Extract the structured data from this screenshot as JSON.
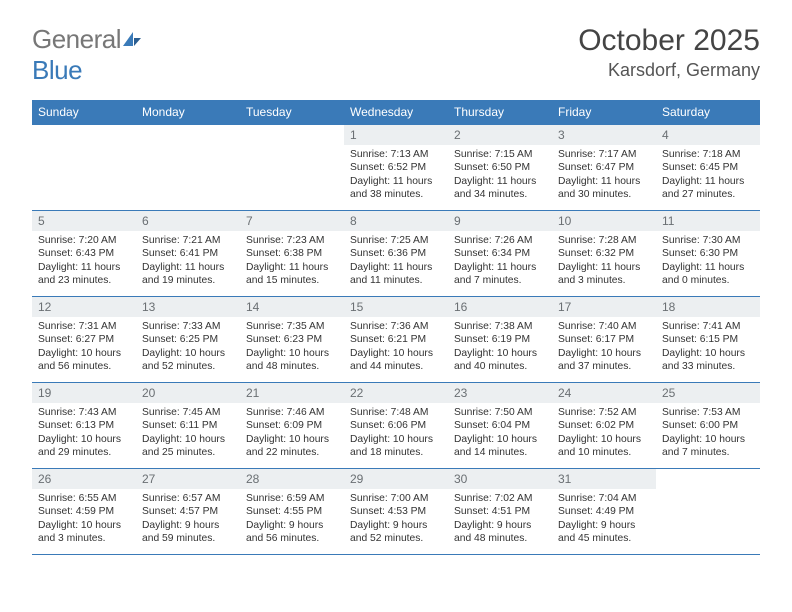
{
  "brand": {
    "part1": "General",
    "part2": "Blue"
  },
  "title": "October 2025",
  "location": "Karsdorf, Germany",
  "colors": {
    "accent": "#3a7ab8",
    "header_bg": "#eceff1",
    "text": "#333333"
  },
  "weekdays": [
    "Sunday",
    "Monday",
    "Tuesday",
    "Wednesday",
    "Thursday",
    "Friday",
    "Saturday"
  ],
  "label_sunrise": "Sunrise: ",
  "label_sunset": "Sunset: ",
  "label_daylight": "Daylight: ",
  "weeks": [
    [
      {
        "empty": true
      },
      {
        "empty": true
      },
      {
        "empty": true
      },
      {
        "n": "1",
        "sr": "7:13 AM",
        "ss": "6:52 PM",
        "dl": "11 hours and 38 minutes."
      },
      {
        "n": "2",
        "sr": "7:15 AM",
        "ss": "6:50 PM",
        "dl": "11 hours and 34 minutes."
      },
      {
        "n": "3",
        "sr": "7:17 AM",
        "ss": "6:47 PM",
        "dl": "11 hours and 30 minutes."
      },
      {
        "n": "4",
        "sr": "7:18 AM",
        "ss": "6:45 PM",
        "dl": "11 hours and 27 minutes."
      }
    ],
    [
      {
        "n": "5",
        "sr": "7:20 AM",
        "ss": "6:43 PM",
        "dl": "11 hours and 23 minutes."
      },
      {
        "n": "6",
        "sr": "7:21 AM",
        "ss": "6:41 PM",
        "dl": "11 hours and 19 minutes."
      },
      {
        "n": "7",
        "sr": "7:23 AM",
        "ss": "6:38 PM",
        "dl": "11 hours and 15 minutes."
      },
      {
        "n": "8",
        "sr": "7:25 AM",
        "ss": "6:36 PM",
        "dl": "11 hours and 11 minutes."
      },
      {
        "n": "9",
        "sr": "7:26 AM",
        "ss": "6:34 PM",
        "dl": "11 hours and 7 minutes."
      },
      {
        "n": "10",
        "sr": "7:28 AM",
        "ss": "6:32 PM",
        "dl": "11 hours and 3 minutes."
      },
      {
        "n": "11",
        "sr": "7:30 AM",
        "ss": "6:30 PM",
        "dl": "11 hours and 0 minutes."
      }
    ],
    [
      {
        "n": "12",
        "sr": "7:31 AM",
        "ss": "6:27 PM",
        "dl": "10 hours and 56 minutes."
      },
      {
        "n": "13",
        "sr": "7:33 AM",
        "ss": "6:25 PM",
        "dl": "10 hours and 52 minutes."
      },
      {
        "n": "14",
        "sr": "7:35 AM",
        "ss": "6:23 PM",
        "dl": "10 hours and 48 minutes."
      },
      {
        "n": "15",
        "sr": "7:36 AM",
        "ss": "6:21 PM",
        "dl": "10 hours and 44 minutes."
      },
      {
        "n": "16",
        "sr": "7:38 AM",
        "ss": "6:19 PM",
        "dl": "10 hours and 40 minutes."
      },
      {
        "n": "17",
        "sr": "7:40 AM",
        "ss": "6:17 PM",
        "dl": "10 hours and 37 minutes."
      },
      {
        "n": "18",
        "sr": "7:41 AM",
        "ss": "6:15 PM",
        "dl": "10 hours and 33 minutes."
      }
    ],
    [
      {
        "n": "19",
        "sr": "7:43 AM",
        "ss": "6:13 PM",
        "dl": "10 hours and 29 minutes."
      },
      {
        "n": "20",
        "sr": "7:45 AM",
        "ss": "6:11 PM",
        "dl": "10 hours and 25 minutes."
      },
      {
        "n": "21",
        "sr": "7:46 AM",
        "ss": "6:09 PM",
        "dl": "10 hours and 22 minutes."
      },
      {
        "n": "22",
        "sr": "7:48 AM",
        "ss": "6:06 PM",
        "dl": "10 hours and 18 minutes."
      },
      {
        "n": "23",
        "sr": "7:50 AM",
        "ss": "6:04 PM",
        "dl": "10 hours and 14 minutes."
      },
      {
        "n": "24",
        "sr": "7:52 AM",
        "ss": "6:02 PM",
        "dl": "10 hours and 10 minutes."
      },
      {
        "n": "25",
        "sr": "7:53 AM",
        "ss": "6:00 PM",
        "dl": "10 hours and 7 minutes."
      }
    ],
    [
      {
        "n": "26",
        "sr": "6:55 AM",
        "ss": "4:59 PM",
        "dl": "10 hours and 3 minutes."
      },
      {
        "n": "27",
        "sr": "6:57 AM",
        "ss": "4:57 PM",
        "dl": "9 hours and 59 minutes."
      },
      {
        "n": "28",
        "sr": "6:59 AM",
        "ss": "4:55 PM",
        "dl": "9 hours and 56 minutes."
      },
      {
        "n": "29",
        "sr": "7:00 AM",
        "ss": "4:53 PM",
        "dl": "9 hours and 52 minutes."
      },
      {
        "n": "30",
        "sr": "7:02 AM",
        "ss": "4:51 PM",
        "dl": "9 hours and 48 minutes."
      },
      {
        "n": "31",
        "sr": "7:04 AM",
        "ss": "4:49 PM",
        "dl": "9 hours and 45 minutes."
      },
      {
        "empty": true
      }
    ]
  ]
}
